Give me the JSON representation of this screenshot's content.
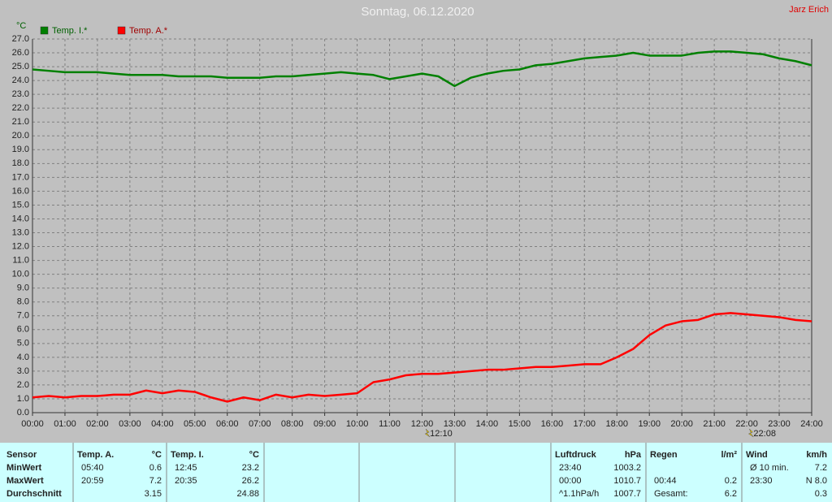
{
  "chart_data": {
    "type": "line",
    "title": "Sonntag, 06.12.2020",
    "author": "Jarz Erich",
    "y_label": "°C",
    "xlim": [
      0,
      24
    ],
    "ylim": [
      0,
      27
    ],
    "grid": true,
    "legend": "top-left",
    "xticks": [
      {
        "value": 0,
        "label": "00:00"
      },
      {
        "value": 1,
        "label": "01:00"
      },
      {
        "value": 2,
        "label": "02:00"
      },
      {
        "value": 3,
        "label": "03:00"
      },
      {
        "value": 4,
        "label": "04:00"
      },
      {
        "value": 5,
        "label": "05:00"
      },
      {
        "value": 6,
        "label": "06:00"
      },
      {
        "value": 7,
        "label": "07:00"
      },
      {
        "value": 8,
        "label": "08:00"
      },
      {
        "value": 9,
        "label": "09:00"
      },
      {
        "value": 10,
        "label": "10:00"
      },
      {
        "value": 11,
        "label": "11:00"
      },
      {
        "value": 12,
        "label": "12:00"
      },
      {
        "value": 13,
        "label": "13:00"
      },
      {
        "value": 14,
        "label": "14:00"
      },
      {
        "value": 15,
        "label": "15:00"
      },
      {
        "value": 16,
        "label": "16:00"
      },
      {
        "value": 17,
        "label": "17:00"
      },
      {
        "value": 18,
        "label": "18:00"
      },
      {
        "value": 19,
        "label": "19:00"
      },
      {
        "value": 20,
        "label": "20:00"
      },
      {
        "value": 21,
        "label": "21:00"
      },
      {
        "value": 22,
        "label": "22:00"
      },
      {
        "value": 23,
        "label": "23:00"
      },
      {
        "value": 24,
        "label": "24:00"
      }
    ],
    "yticks": [
      {
        "value": 0,
        "label": "0.0"
      },
      {
        "value": 1,
        "label": "1.0"
      },
      {
        "value": 2,
        "label": "2.0"
      },
      {
        "value": 3,
        "label": "3.0"
      },
      {
        "value": 4,
        "label": "4.0"
      },
      {
        "value": 5,
        "label": "5.0"
      },
      {
        "value": 6,
        "label": "6.0"
      },
      {
        "value": 7,
        "label": "7.0"
      },
      {
        "value": 8,
        "label": "8.0"
      },
      {
        "value": 9,
        "label": "9.0"
      },
      {
        "value": 10,
        "label": "10.0"
      },
      {
        "value": 11,
        "label": "11.0"
      },
      {
        "value": 12,
        "label": "12.0"
      },
      {
        "value": 13,
        "label": "13.0"
      },
      {
        "value": 14,
        "label": "14.0"
      },
      {
        "value": 15,
        "label": "15.0"
      },
      {
        "value": 16,
        "label": "16.0"
      },
      {
        "value": 17,
        "label": "17.0"
      },
      {
        "value": 18,
        "label": "18.0"
      },
      {
        "value": 19,
        "label": "19.0"
      },
      {
        "value": 20,
        "label": "20.0"
      },
      {
        "value": 21,
        "label": "21.0"
      },
      {
        "value": 22,
        "label": "22.0"
      },
      {
        "value": 23,
        "label": "23.0"
      },
      {
        "value": 24,
        "label": "24.0"
      },
      {
        "value": 25,
        "label": "25.0"
      },
      {
        "value": 26,
        "label": "26.0"
      },
      {
        "value": 27,
        "label": "27.0"
      }
    ],
    "x": [
      0,
      0.5,
      1,
      1.5,
      2,
      2.5,
      3,
      3.5,
      4,
      4.5,
      5,
      5.5,
      6,
      6.5,
      7,
      7.5,
      8,
      8.5,
      9,
      9.5,
      10,
      10.5,
      11,
      11.5,
      12,
      12.5,
      13,
      13.5,
      14,
      14.5,
      15,
      15.5,
      16,
      16.5,
      17,
      17.5,
      18,
      18.5,
      19,
      19.5,
      20,
      20.5,
      21,
      21.5,
      22,
      22.5,
      23,
      23.5,
      24
    ],
    "series": [
      {
        "name": "Temp. I.*",
        "color": "#008000",
        "values": [
          24.8,
          24.7,
          24.6,
          24.6,
          24.6,
          24.5,
          24.4,
          24.4,
          24.4,
          24.3,
          24.3,
          24.3,
          24.2,
          24.2,
          24.2,
          24.3,
          24.3,
          24.4,
          24.5,
          24.6,
          24.5,
          24.4,
          24.1,
          24.3,
          24.5,
          24.3,
          23.6,
          24.2,
          24.5,
          24.7,
          24.8,
          25.1,
          25.2,
          25.4,
          25.6,
          25.7,
          25.8,
          26.0,
          25.8,
          25.8,
          25.8,
          26.0,
          26.1,
          26.1,
          26.0,
          25.9,
          25.6,
          25.4,
          25.1
        ]
      },
      {
        "name": "Temp. A.*",
        "color": "#ff0000",
        "values": [
          1.1,
          1.2,
          1.1,
          1.2,
          1.2,
          1.3,
          1.3,
          1.6,
          1.4,
          1.6,
          1.5,
          1.1,
          0.8,
          1.1,
          0.9,
          1.3,
          1.1,
          1.3,
          1.2,
          1.3,
          1.4,
          2.2,
          2.4,
          2.7,
          2.8,
          2.8,
          2.9,
          3.0,
          3.1,
          3.1,
          3.2,
          3.3,
          3.3,
          3.4,
          3.5,
          3.5,
          4.0,
          4.6,
          5.6,
          6.3,
          6.6,
          6.7,
          7.1,
          7.2,
          7.1,
          7.0,
          6.9,
          6.7,
          6.6
        ]
      }
    ],
    "annotations": [
      {
        "x": 12.1667,
        "text": "12:10"
      },
      {
        "x": 22.1333,
        "text": "22:08"
      }
    ]
  },
  "table": {
    "row_labels": [
      "Sensor",
      "MinWert",
      "MaxWert",
      "Durchschnitt"
    ],
    "blocks": [
      {
        "header": "Temp. A.",
        "unit": "°C",
        "rows": [
          [
            "05:40",
            "0.6"
          ],
          [
            "20:59",
            "7.2"
          ],
          [
            null,
            "3.15"
          ]
        ]
      },
      {
        "header": "Temp. I.",
        "unit": "°C",
        "rows": [
          [
            "12:45",
            "23.2"
          ],
          [
            "20:35",
            "26.2"
          ],
          [
            null,
            "24.88"
          ]
        ]
      },
      {
        "header": "Luftdruck",
        "unit": "hPa",
        "rows": [
          [
            "23:40",
            "1003.2"
          ],
          [
            "00:00",
            "1010.7"
          ],
          [
            "^1.1hPa/h",
            "1007.7"
          ]
        ]
      },
      {
        "header": "Regen",
        "unit": "l/m²",
        "rows": [
          [
            null,
            null
          ],
          [
            "00:44",
            "0.2"
          ],
          [
            "Gesamt:",
            "6.2"
          ]
        ]
      },
      {
        "header": "Wind",
        "unit": "km/h",
        "rows": [
          [
            "Ø 10 min.",
            "7.2"
          ],
          [
            "23:30",
            "N 8.0"
          ],
          [
            null,
            "0.3"
          ]
        ]
      }
    ]
  }
}
